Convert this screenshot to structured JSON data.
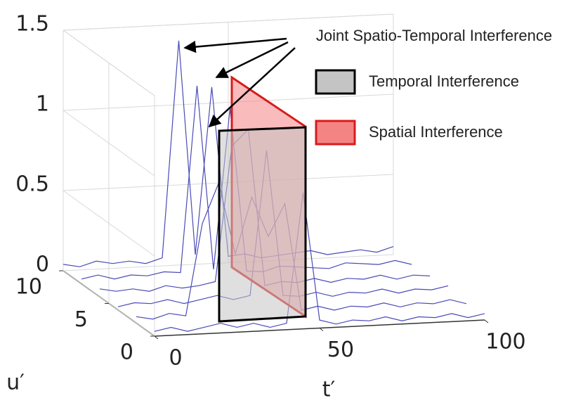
{
  "chart_data": {
    "type": "mesh3d",
    "x": [
      0,
      5,
      10,
      15,
      20,
      25,
      30,
      35,
      40,
      45,
      50,
      55,
      60,
      65,
      70,
      75,
      80,
      85,
      90,
      95,
      100
    ],
    "rows": [
      {
        "u": 0,
        "values": [
          0.03,
          0.05,
          0.02,
          0.04,
          0.06,
          0.03,
          0.05,
          0.02,
          0.04,
          0.85,
          0.05,
          0.02,
          0.04,
          0.03,
          0.05,
          0.02,
          0.04,
          0.03,
          0.05,
          0.02,
          0.04
        ]
      },
      {
        "u": 2,
        "values": [
          0.04,
          0.02,
          0.05,
          0.03,
          0.6,
          0.85,
          0.4,
          0.75,
          0.5,
          0.7,
          0.03,
          0.05,
          0.02,
          0.04,
          0.03,
          0.05,
          0.02,
          0.04,
          0.03,
          0.05,
          0.02
        ]
      },
      {
        "u": 4,
        "values": [
          0.02,
          0.04,
          0.03,
          0.05,
          0.02,
          0.04,
          0.06,
          0.03,
          0.05,
          0.95,
          0.04,
          0.03,
          0.05,
          0.02,
          0.04,
          0.03,
          0.05,
          0.02,
          0.04,
          0.03,
          0.05
        ]
      },
      {
        "u": 6,
        "values": [
          0.05,
          0.03,
          0.04,
          0.02,
          0.05,
          0.03,
          0.04,
          0.06,
          0.9,
          1.0,
          0.02,
          0.04,
          0.03,
          0.05,
          0.02,
          0.04,
          0.03,
          0.05,
          0.02,
          0.04,
          0.03
        ]
      },
      {
        "u": 8,
        "values": [
          0.03,
          0.05,
          0.02,
          0.04,
          0.03,
          0.05,
          0.04,
          1.2,
          0.05,
          1.05,
          0.03,
          0.02,
          0.05,
          0.04,
          0.03,
          0.02,
          0.05,
          0.04,
          0.03,
          0.05,
          0.02
        ]
      },
      {
        "u": 10,
        "values": [
          0.04,
          0.02,
          0.05,
          0.03,
          0.04,
          0.02,
          0.05,
          1.4,
          0.06,
          1.1,
          0.04,
          0.05,
          0.02,
          0.03,
          0.04,
          0.05,
          0.02,
          0.03,
          0.04,
          0.02,
          0.05
        ]
      }
    ],
    "xlim": [
      0,
      100
    ],
    "ylim": [
      0,
      10
    ],
    "zlim": [
      0,
      1.5
    ],
    "xticks": [
      0,
      50,
      100
    ],
    "yticks": [
      0,
      5,
      10
    ],
    "zticks": [
      0,
      0.5,
      1,
      1.5
    ],
    "xlabel": "t′",
    "ylabel": "u′",
    "annotations": [
      "Joint Spatio-Temporal Interference"
    ],
    "legend": [
      {
        "name": "Temporal Interference",
        "color": "#c4c4c4",
        "edge": "#000000"
      },
      {
        "name": "Spatial Interference",
        "color": "#f48484",
        "edge": "#d81c1c"
      }
    ],
    "line_color": "#4a4ab8"
  }
}
